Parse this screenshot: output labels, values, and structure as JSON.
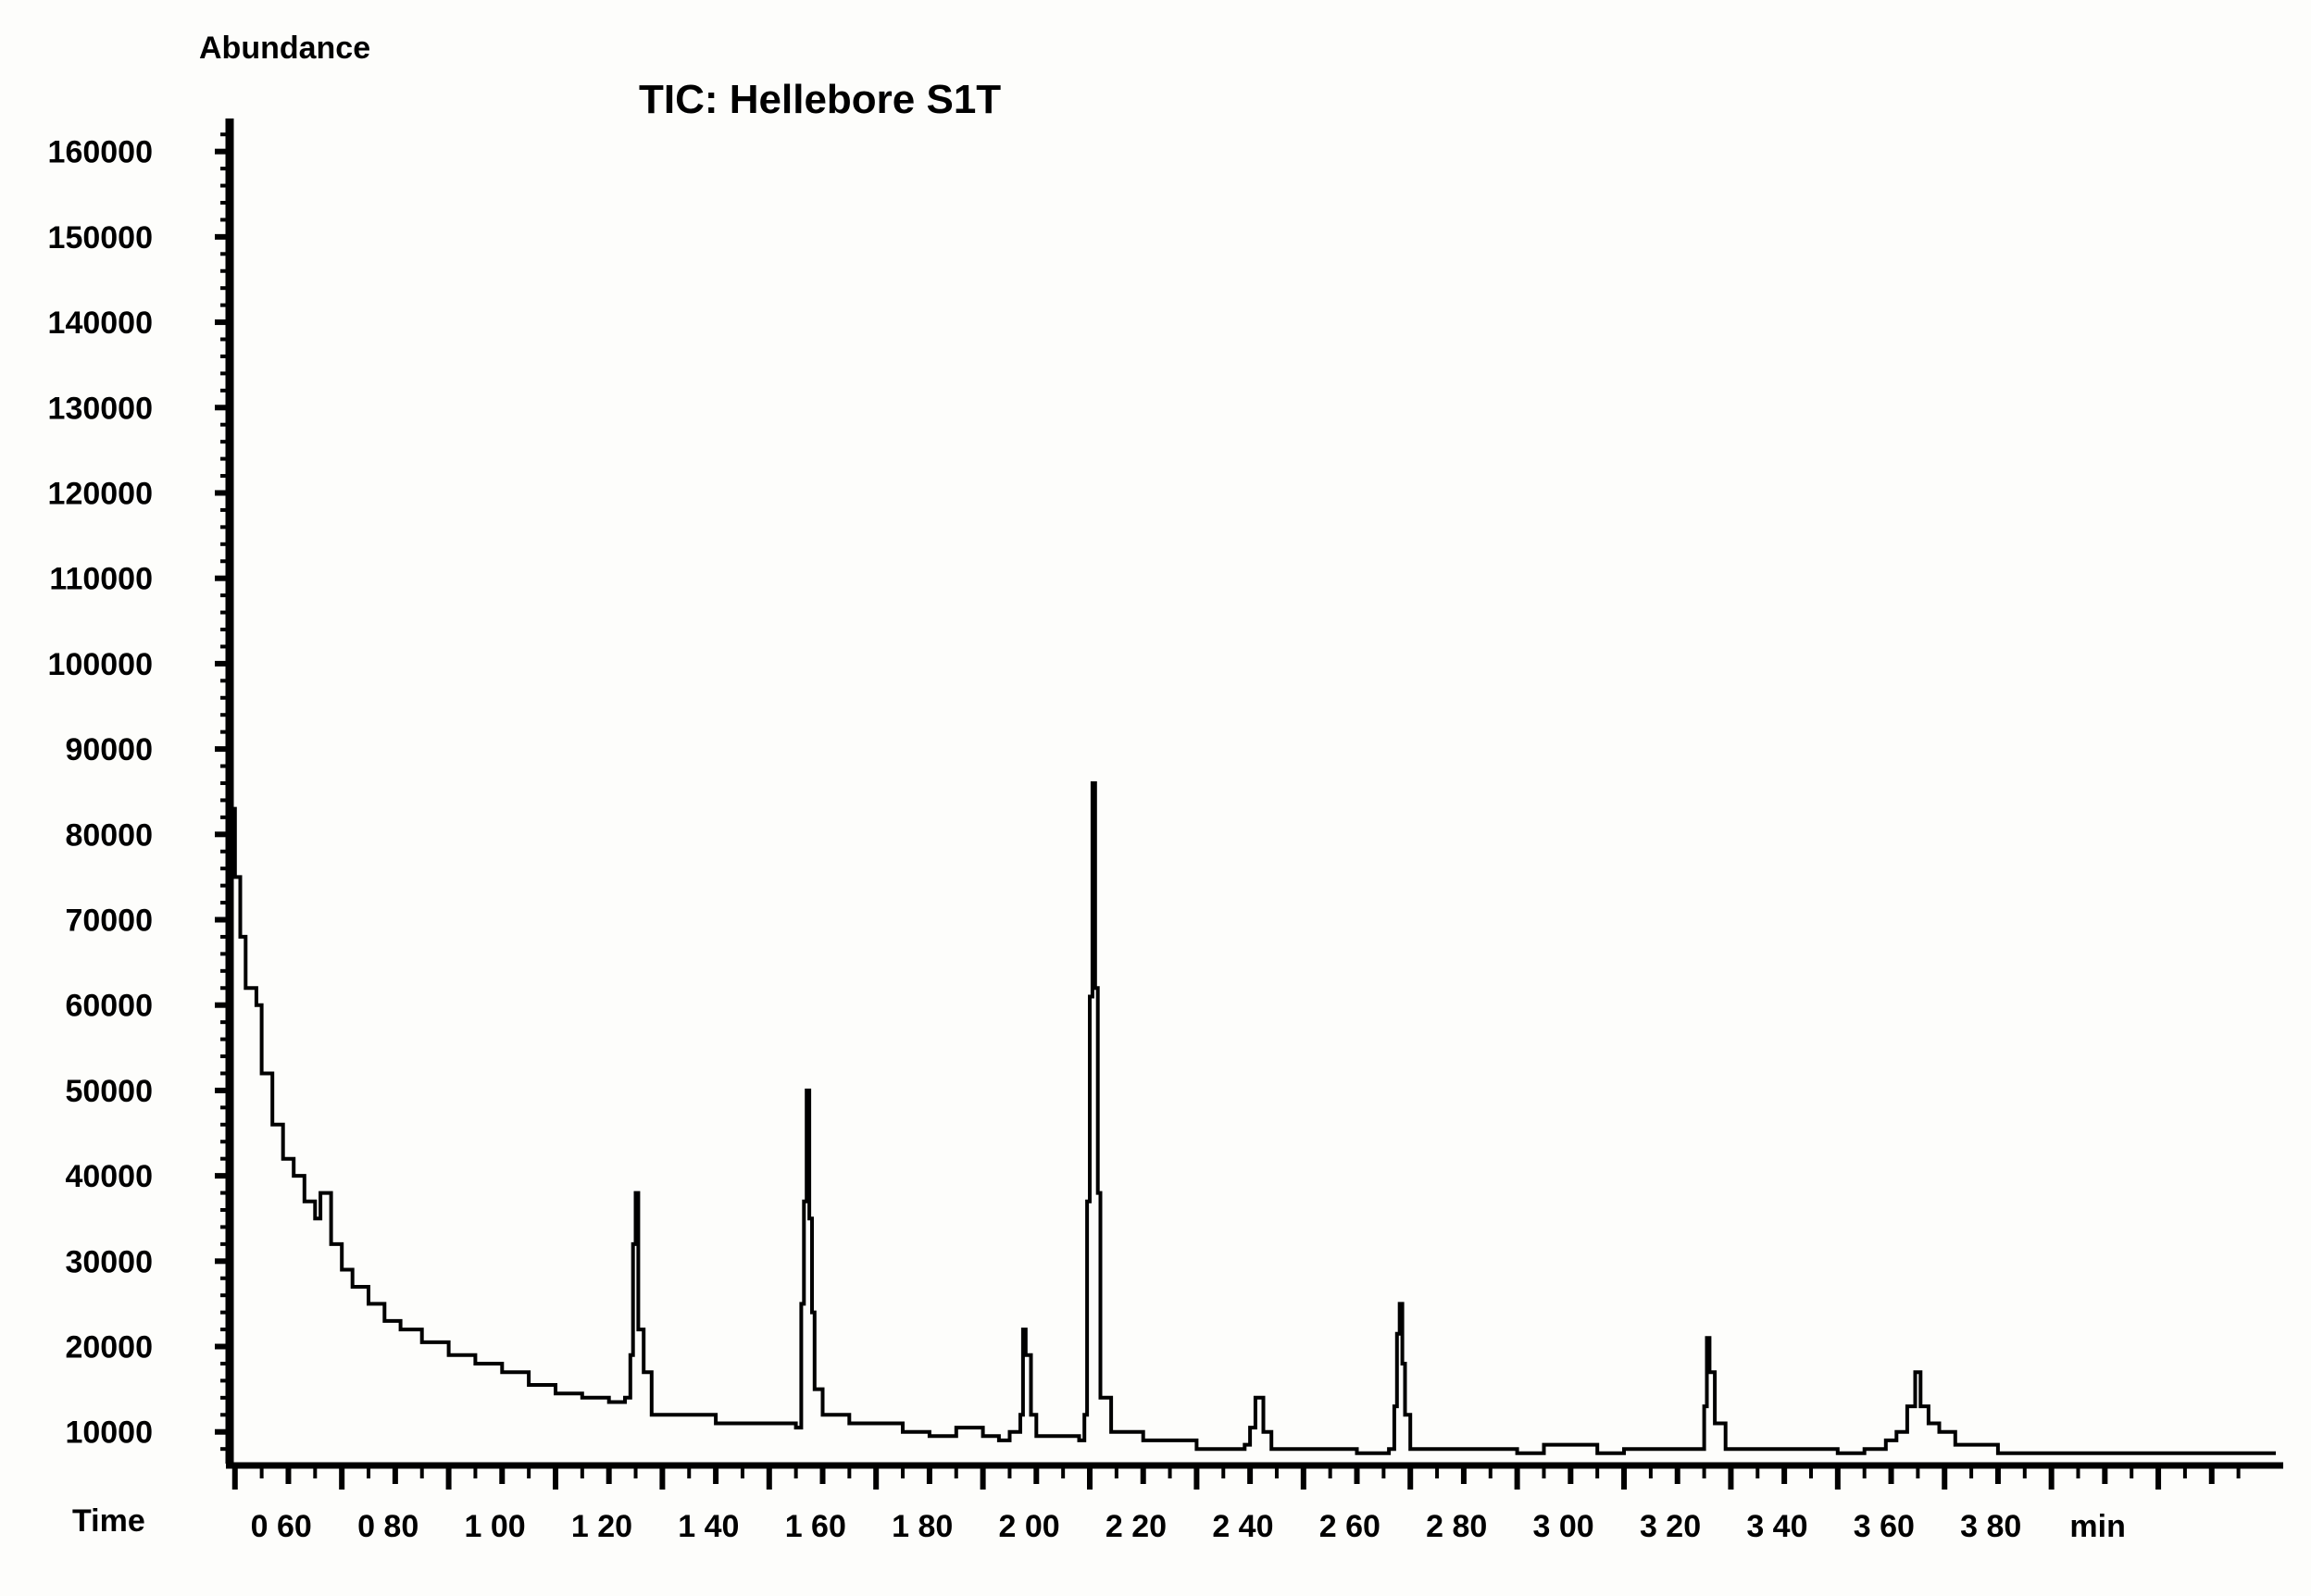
{
  "chart_data": {
    "type": "line",
    "title": "TIC: Hellebore S1T",
    "ylabel": "Abundance",
    "xlabel": "Time",
    "x_unit": "min",
    "ylim": [
      6500,
      163000
    ],
    "xlim": [
      0.9,
      39.2
    ],
    "grid": false,
    "legend": "none",
    "line_color": "#000000",
    "y_ticks": [
      10000,
      20000,
      30000,
      40000,
      50000,
      60000,
      70000,
      80000,
      90000,
      100000,
      110000,
      120000,
      130000,
      140000,
      150000,
      160000
    ],
    "y_tick_labels": [
      "10000",
      "20000",
      "30000",
      "40000",
      "50000",
      "60000",
      "70000",
      "80000",
      "90000",
      "100000",
      "110000",
      "120000",
      "130000",
      "140000",
      "150000",
      "160000"
    ],
    "x_ticks": [
      1.0,
      3.0,
      5.0,
      7.0,
      9.0,
      11.0,
      13.0,
      15.0,
      17.0,
      19.0,
      21.0,
      23.0,
      25.0,
      27.0,
      29.0,
      31.0,
      33.0,
      35.0,
      37.0
    ],
    "x_tick_labels": [
      "0 60",
      "0 80",
      "1 00",
      "1 20",
      "1 40",
      "1 60",
      "1 80",
      "2 00",
      "2 20",
      "2 40",
      "2 60",
      "2 80",
      "3 00",
      "3 20",
      "3 40",
      "3 60",
      "3 80",
      "min",
      ""
    ],
    "series": [
      {
        "values": [
          [
            0.9,
            83000
          ],
          [
            1.0,
            75000
          ],
          [
            1.1,
            68000
          ],
          [
            1.2,
            62000
          ],
          [
            1.4,
            60000
          ],
          [
            1.5,
            52000
          ],
          [
            1.7,
            46000
          ],
          [
            1.9,
            42000
          ],
          [
            2.1,
            40000
          ],
          [
            2.3,
            37000
          ],
          [
            2.5,
            35000
          ],
          [
            2.6,
            38000
          ],
          [
            2.8,
            32000
          ],
          [
            3.0,
            29000
          ],
          [
            3.2,
            27000
          ],
          [
            3.5,
            25000
          ],
          [
            3.8,
            23000
          ],
          [
            4.1,
            22000
          ],
          [
            4.5,
            20500
          ],
          [
            5.0,
            19000
          ],
          [
            5.5,
            18000
          ],
          [
            6.0,
            17000
          ],
          [
            6.5,
            15500
          ],
          [
            7.0,
            14500
          ],
          [
            7.5,
            14000
          ],
          [
            8.0,
            13500
          ],
          [
            8.3,
            14000
          ],
          [
            8.4,
            19000
          ],
          [
            8.45,
            32000
          ],
          [
            8.5,
            38000
          ],
          [
            8.55,
            22000
          ],
          [
            8.65,
            17000
          ],
          [
            8.8,
            12000
          ],
          [
            9.5,
            12000
          ],
          [
            10.0,
            11000
          ],
          [
            11.5,
            10500
          ],
          [
            11.6,
            25000
          ],
          [
            11.65,
            37000
          ],
          [
            11.7,
            50000
          ],
          [
            11.75,
            35000
          ],
          [
            11.8,
            24000
          ],
          [
            11.85,
            15000
          ],
          [
            12.0,
            12000
          ],
          [
            12.5,
            11000
          ],
          [
            13.5,
            10000
          ],
          [
            14.0,
            9500
          ],
          [
            14.5,
            10500
          ],
          [
            15.0,
            9500
          ],
          [
            15.3,
            9000
          ],
          [
            15.5,
            10000
          ],
          [
            15.7,
            12000
          ],
          [
            15.75,
            22000
          ],
          [
            15.8,
            19000
          ],
          [
            15.9,
            12000
          ],
          [
            16.0,
            9500
          ],
          [
            16.8,
            9000
          ],
          [
            16.9,
            12000
          ],
          [
            16.95,
            37000
          ],
          [
            17.0,
            61000
          ],
          [
            17.05,
            86000
          ],
          [
            17.1,
            62000
          ],
          [
            17.15,
            38000
          ],
          [
            17.2,
            14000
          ],
          [
            17.4,
            10000
          ],
          [
            18.0,
            9000
          ],
          [
            19.0,
            8000
          ],
          [
            19.9,
            8500
          ],
          [
            20.0,
            10500
          ],
          [
            20.1,
            14000
          ],
          [
            20.25,
            10000
          ],
          [
            20.4,
            8000
          ],
          [
            22.0,
            7500
          ],
          [
            22.6,
            8000
          ],
          [
            22.7,
            13000
          ],
          [
            22.75,
            21500
          ],
          [
            22.8,
            25000
          ],
          [
            22.85,
            18000
          ],
          [
            22.9,
            12000
          ],
          [
            23.0,
            8000
          ],
          [
            25.0,
            7500
          ],
          [
            25.5,
            8500
          ],
          [
            26.5,
            7500
          ],
          [
            27.0,
            8000
          ],
          [
            28.4,
            8000
          ],
          [
            28.5,
            13000
          ],
          [
            28.55,
            21000
          ],
          [
            28.6,
            17000
          ],
          [
            28.7,
            11000
          ],
          [
            28.9,
            8000
          ],
          [
            31.0,
            7500
          ],
          [
            31.5,
            8000
          ],
          [
            31.9,
            9000
          ],
          [
            32.1,
            10000
          ],
          [
            32.3,
            13000
          ],
          [
            32.45,
            17000
          ],
          [
            32.55,
            13000
          ],
          [
            32.7,
            11000
          ],
          [
            32.9,
            10000
          ],
          [
            33.2,
            8500
          ],
          [
            34.0,
            7500
          ],
          [
            35.0,
            7500
          ],
          [
            36.5,
            7500
          ],
          [
            37.5,
            7500
          ],
          [
            38.5,
            7500
          ],
          [
            39.2,
            7500
          ]
        ]
      }
    ]
  }
}
